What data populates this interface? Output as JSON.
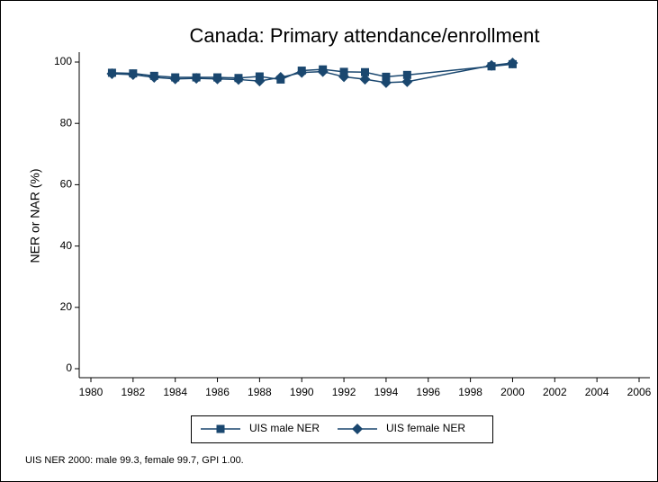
{
  "chart_data": {
    "type": "line",
    "title": "Canada: Primary attendance/enrollment",
    "y_label": "NER or NAR (%)",
    "note": "UIS NER 2000: male 99.3, female 99.7, GPI 1.00.",
    "x": [
      1981,
      1982,
      1983,
      1984,
      1985,
      1986,
      1987,
      1988,
      1989,
      1990,
      1991,
      1992,
      1993,
      1994,
      1995,
      1999,
      2000
    ],
    "series": [
      {
        "name": "UIS male NER",
        "color": "#1a476f",
        "marker": "square",
        "values": [
          96.5,
          96.3,
          95.5,
          95,
          95,
          95,
          94.8,
          95.3,
          94.3,
          97.2,
          97.6,
          96.8,
          96.7,
          95.2,
          95.8,
          98.6,
          99.3
        ]
      },
      {
        "name": "UIS female NER",
        "color": "#1a476f",
        "marker": "diamond",
        "values": [
          96.2,
          95.9,
          95,
          94.5,
          94.7,
          94.5,
          94.3,
          93.8,
          95,
          96.6,
          96.9,
          95.2,
          94.4,
          93.3,
          93.6,
          98.9,
          99.7
        ]
      }
    ],
    "xlim": [
      1980,
      2006
    ],
    "xticks": [
      1980,
      1982,
      1984,
      1986,
      1988,
      1990,
      1992,
      1994,
      1996,
      1998,
      2000,
      2002,
      2004,
      2006
    ],
    "ylim": [
      0,
      100
    ],
    "yticks": [
      0,
      20,
      40,
      60,
      80,
      100
    ],
    "grid": false,
    "legend": "bottom"
  }
}
